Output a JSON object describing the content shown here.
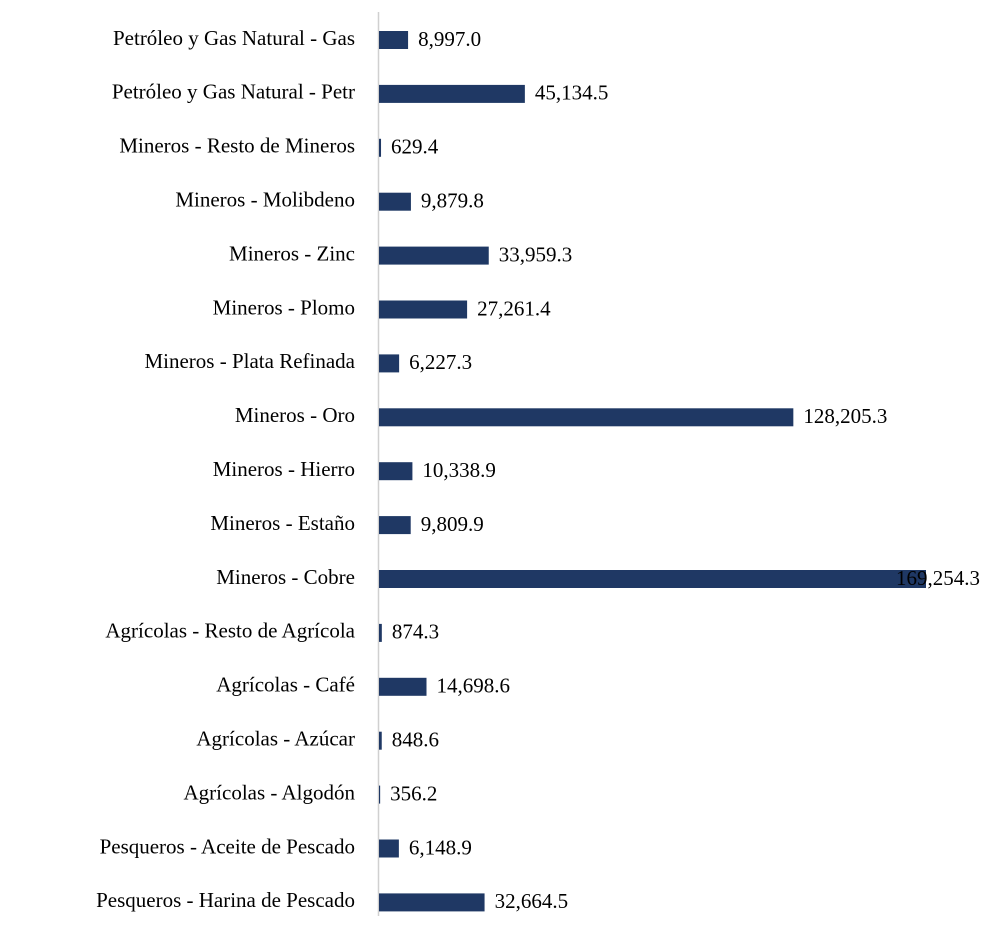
{
  "chart_data": {
    "type": "bar",
    "orientation": "horizontal",
    "color": "#1f3864",
    "categories": [
      "Petróleo y Gas Natural - Gas",
      "Petróleo y Gas Natural - Petr",
      "Mineros - Resto de Mineros",
      "Mineros - Molibdeno",
      "Mineros - Zinc",
      "Mineros - Plomo",
      "Mineros - Plata Refinada",
      "Mineros - Oro",
      "Mineros - Hierro",
      "Mineros - Estaño",
      "Mineros - Cobre",
      "Agrícolas - Resto de Agrícola",
      "Agrícolas - Café",
      "Agrícolas - Azúcar",
      "Agrícolas - Algodón",
      "Pesqueros - Aceite de Pescado",
      "Pesqueros - Harina de Pescado"
    ],
    "values": [
      8997.0,
      45134.5,
      629.4,
      9879.8,
      33959.3,
      27261.4,
      6227.3,
      128205.3,
      10338.9,
      9809.9,
      169254.3,
      874.3,
      14698.6,
      848.6,
      356.2,
      6148.9,
      32664.5
    ],
    "value_labels": [
      "8,997.0",
      "45,134.5",
      "629.4",
      "9,879.8",
      "33,959.3",
      "27,261.4",
      "6,227.3",
      "128,205.3",
      "10,338.9",
      "9,809.9",
      "169,254.3",
      "874.3",
      "14,698.6",
      "848.6",
      "356.2",
      "6,148.9",
      "32,664.5"
    ]
  }
}
